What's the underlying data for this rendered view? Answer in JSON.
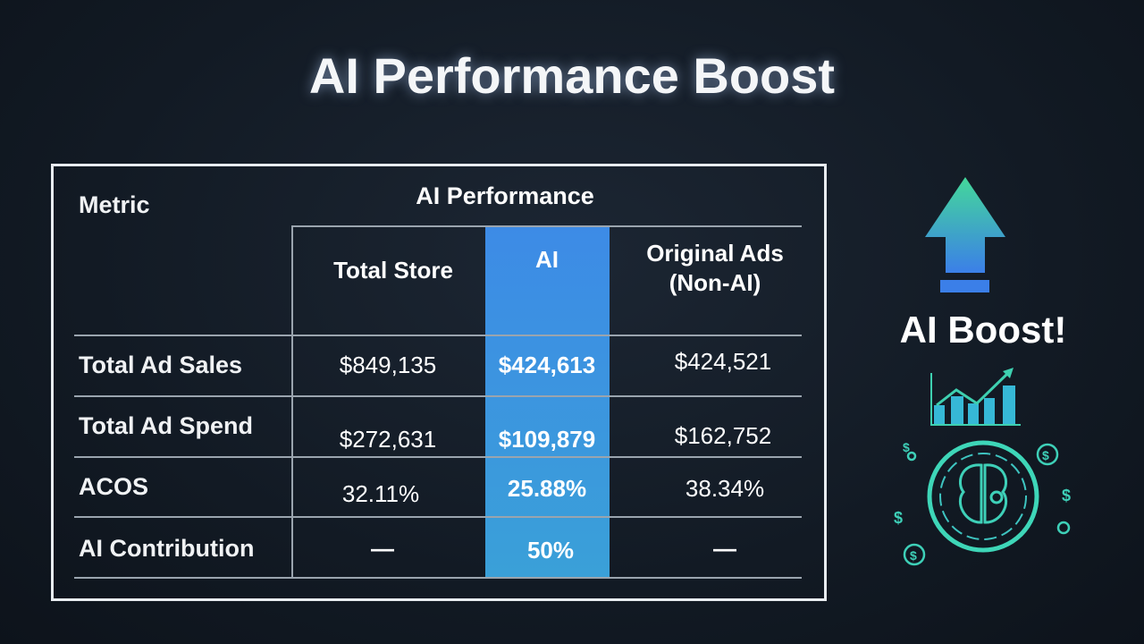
{
  "title": "AI Performance Boost",
  "table": {
    "metric_header": "Metric",
    "group_header": "AI Performance",
    "columns": [
      "Total Store",
      "AI",
      "Original Ads\n(Non-AI)"
    ],
    "rows": [
      {
        "metric": "Total Ad Sales",
        "values": [
          "$849,135",
          "$424,613",
          "$424,521"
        ]
      },
      {
        "metric": "Total Ad Spend",
        "values": [
          "$272,631",
          "$109,879",
          "$162,752"
        ]
      },
      {
        "metric": "ACOS",
        "values": [
          "32.11%",
          "25.88%",
          "38.34%"
        ]
      },
      {
        "metric": "AI Contribution",
        "values": [
          "—",
          "50%",
          "—"
        ]
      }
    ]
  },
  "side": {
    "label": "AI Boost!",
    "icons": [
      "arrow-up-icon",
      "bar-chart-icon",
      "brain-icon",
      "dollar-icon"
    ]
  },
  "colors": {
    "ai_column": "#3d8be6",
    "accent_teal": "#3ee0b0"
  }
}
